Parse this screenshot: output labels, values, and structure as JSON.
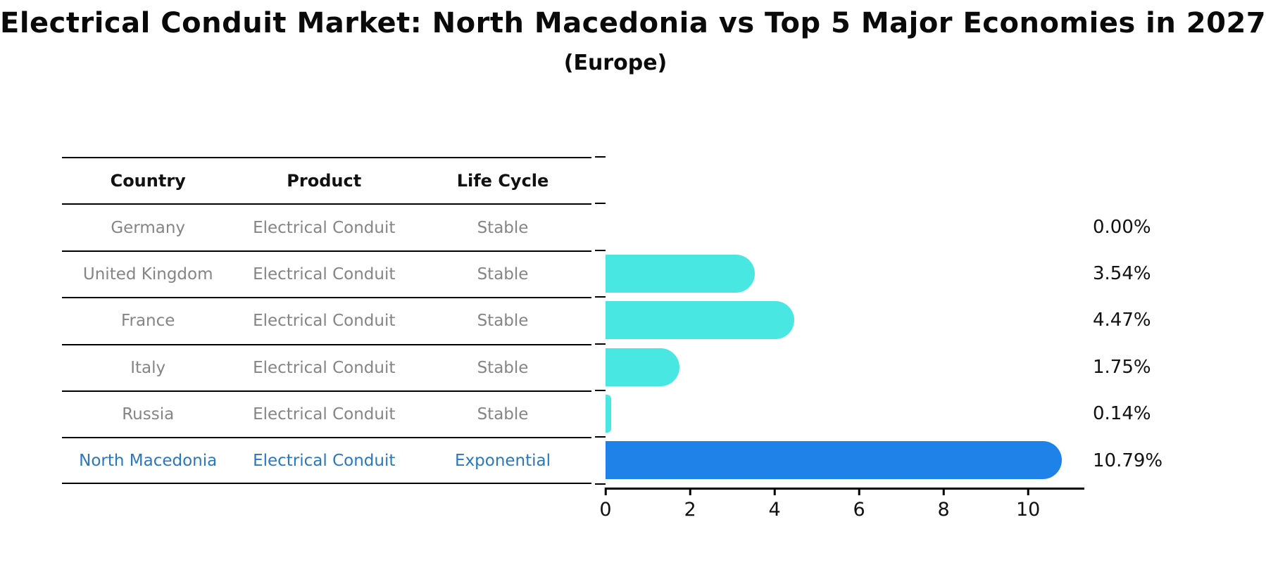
{
  "header": {
    "title": "Electrical Conduit Market: North Macedonia vs Top 5 Major Economies in 2027",
    "subtitle": "(Europe)"
  },
  "table": {
    "columns": [
      "Country",
      "Product",
      "Life Cycle"
    ],
    "rows": [
      {
        "country": "Germany",
        "product": "Electrical Conduit",
        "life_cycle": "Stable",
        "highlight": false
      },
      {
        "country": "United Kingdom",
        "product": "Electrical Conduit",
        "life_cycle": "Stable",
        "highlight": false
      },
      {
        "country": "France",
        "product": "Electrical Conduit",
        "life_cycle": "Stable",
        "highlight": false
      },
      {
        "country": "Italy",
        "product": "Electrical Conduit",
        "life_cycle": "Stable",
        "highlight": false
      },
      {
        "country": "Russia",
        "product": "Electrical Conduit",
        "life_cycle": "Stable",
        "highlight": false
      },
      {
        "country": "North Macedonia",
        "product": "Electrical Conduit",
        "life_cycle": "Exponential",
        "highlight": true
      }
    ]
  },
  "chart_data": {
    "type": "bar",
    "orientation": "horizontal",
    "title": "Electrical Conduit Market: North Macedonia vs Top 5 Major Economies in 2027",
    "subtitle": "(Europe)",
    "categories": [
      "Germany",
      "United Kingdom",
      "France",
      "Italy",
      "Russia",
      "North Macedonia"
    ],
    "values": [
      0.0,
      3.54,
      4.47,
      1.75,
      0.14,
      10.79
    ],
    "value_labels": [
      "0.00%",
      "3.54%",
      "4.47%",
      "1.75%",
      "0.14%",
      "10.79%"
    ],
    "x_ticks": [
      0,
      2,
      4,
      6,
      8,
      10
    ],
    "xlim": [
      0,
      11.33
    ],
    "xlabel": "",
    "ylabel": "",
    "grid": false,
    "legend": "none",
    "highlight_index": 5,
    "base_color": "#48e7e1",
    "highlight_color": "#1e82e8"
  },
  "colors": {
    "base_bar": "#48e7e1",
    "highlight_bar": "#1e82e8",
    "highlight_text": "#2878be",
    "muted_text": "#858585",
    "axis": "#000000"
  }
}
